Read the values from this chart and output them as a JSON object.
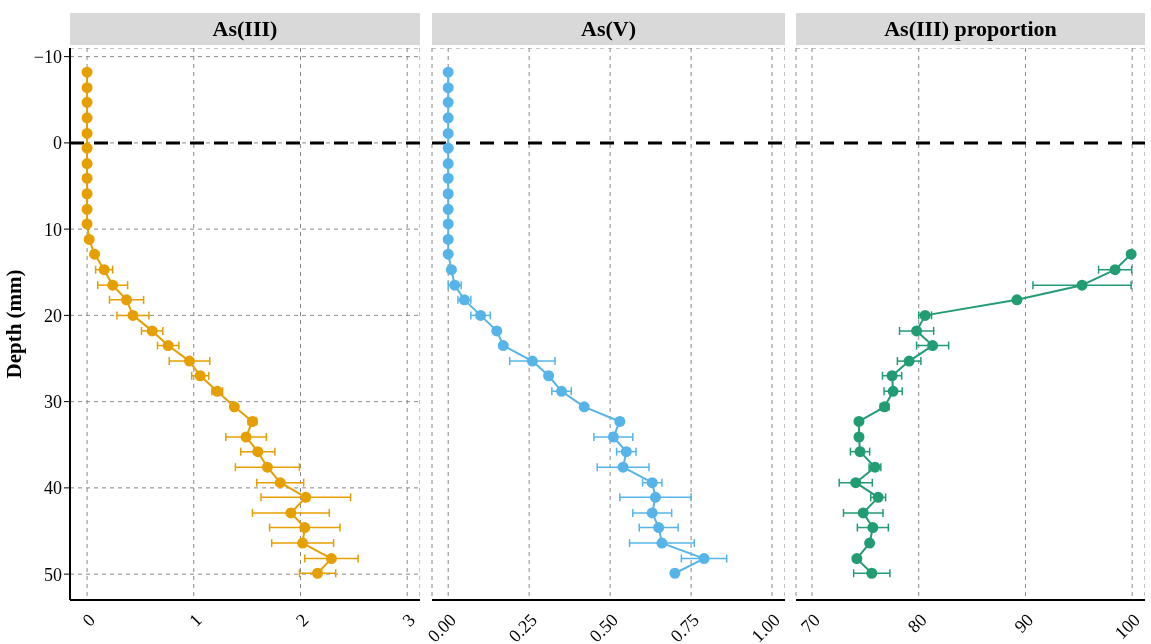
{
  "chart_data": [
    {
      "type": "line",
      "title": "As(III)",
      "ylabel": "Depth (mm)",
      "orientation": "horizontal",
      "color": "#e69f00",
      "marker": "circle",
      "grid": true,
      "x": [
        -8.2,
        -6.4,
        -4.7,
        -2.9,
        -1.1,
        0.6,
        2.4,
        4.1,
        5.9,
        7.7,
        9.4,
        11.2,
        12.9,
        14.7,
        16.5,
        18.2,
        20.0,
        21.8,
        23.5,
        25.3,
        27.0,
        28.8,
        30.6,
        32.3,
        34.1,
        35.8,
        37.6,
        39.4,
        41.1,
        42.9,
        44.6,
        46.4,
        48.2,
        49.9
      ],
      "values": [
        0,
        0,
        0,
        0,
        0,
        0,
        0,
        0,
        0,
        0,
        0,
        0.02,
        0.07,
        0.16,
        0.24,
        0.37,
        0.43,
        0.61,
        0.76,
        0.96,
        1.06,
        1.22,
        1.38,
        1.55,
        1.49,
        1.6,
        1.69,
        1.81,
        2.05,
        1.91,
        2.04,
        2.02,
        2.29,
        2.16
      ],
      "errors": [
        null,
        null,
        null,
        null,
        null,
        null,
        null,
        null,
        null,
        null,
        null,
        null,
        null,
        0.08,
        0.14,
        0.16,
        0.15,
        0.1,
        0.1,
        0.19,
        0.08,
        0.05,
        null,
        0.04,
        0.19,
        0.16,
        0.3,
        0.22,
        0.42,
        0.36,
        0.33,
        0.29,
        0.25,
        0.17
      ],
      "xlim": [
        -0.16,
        3.12
      ],
      "xticks": [
        0,
        1,
        2,
        3
      ],
      "ylim": [
        53,
        -11
      ],
      "yticks": [
        {
          "value": -10,
          "label": "−10"
        },
        0,
        10,
        20,
        30,
        40,
        50
      ],
      "ref_lines": [
        {
          "axis": "y",
          "value": 0,
          "color": "#000000",
          "line_style": "dashed"
        }
      ]
    },
    {
      "type": "line",
      "title": "As(V)",
      "orientation": "horizontal",
      "color": "#56b4e9",
      "marker": "circle",
      "grid": true,
      "tick_labels": "x",
      "x": [
        -8.2,
        -6.4,
        -4.7,
        -2.9,
        -1.1,
        0.6,
        2.4,
        4.1,
        5.9,
        7.7,
        9.4,
        11.2,
        12.9,
        14.7,
        16.5,
        18.2,
        20.0,
        21.8,
        23.5,
        25.3,
        27.0,
        28.8,
        30.6,
        32.3,
        34.1,
        35.8,
        37.6,
        39.4,
        41.1,
        42.9,
        44.6,
        46.4,
        48.2,
        49.9
      ],
      "values": [
        0,
        0,
        0,
        0,
        0,
        0,
        0,
        0,
        0,
        0,
        0,
        0,
        0,
        0.01,
        0.02,
        0.05,
        0.1,
        0.15,
        0.17,
        0.26,
        0.31,
        0.35,
        0.42,
        0.53,
        0.51,
        0.55,
        0.54,
        0.63,
        0.64,
        0.63,
        0.65,
        0.66,
        0.79,
        0.7
      ],
      "errors": [
        null,
        null,
        null,
        null,
        null,
        null,
        null,
        null,
        null,
        null,
        null,
        null,
        null,
        null,
        0.02,
        0.02,
        0.03,
        null,
        null,
        0.07,
        null,
        0.03,
        null,
        0.01,
        0.06,
        0.03,
        0.08,
        0.03,
        0.11,
        0.06,
        0.06,
        0.1,
        0.07,
        null
      ],
      "xlim": [
        -0.05,
        1.04
      ],
      "xticks": [
        {
          "value": 0,
          "label": "0.00"
        },
        {
          "value": 0.25,
          "label": "0.25"
        },
        {
          "value": 0.5,
          "label": "0.50"
        },
        {
          "value": 0.75,
          "label": "0.75"
        },
        {
          "value": 1,
          "label": "1.00"
        }
      ],
      "ylim": [
        53,
        -11
      ],
      "yticks": [
        -10,
        0,
        10,
        20,
        30,
        40,
        50
      ],
      "ref_lines": [
        {
          "axis": "y",
          "value": 0,
          "color": "#000000",
          "line_style": "dashed"
        }
      ]
    },
    {
      "type": "line",
      "title": "As(III) proportion",
      "orientation": "horizontal",
      "color": "#229c72",
      "marker": "circle",
      "grid": true,
      "tick_labels": "x",
      "x": [
        12.9,
        14.7,
        16.5,
        18.2,
        20.0,
        21.8,
        23.5,
        25.3,
        27.0,
        28.8,
        30.6,
        32.3,
        34.1,
        35.8,
        37.6,
        39.4,
        41.1,
        42.9,
        44.6,
        46.4,
        48.2,
        49.9
      ],
      "values": [
        99.9,
        98.4,
        95.3,
        89.2,
        80.6,
        79.8,
        81.3,
        79.1,
        77.5,
        77.6,
        76.8,
        74.4,
        74.4,
        74.5,
        75.9,
        74.1,
        76.2,
        74.8,
        75.7,
        75.4,
        74.2,
        75.6
      ],
      "errors": [
        null,
        1.55,
        4.6,
        null,
        0.6,
        1.6,
        1.5,
        1.1,
        0.9,
        0.85,
        0.4,
        null,
        null,
        0.9,
        0.55,
        1.55,
        0.7,
        1.85,
        1.45,
        null,
        null,
        1.7
      ],
      "xlim": [
        68.5,
        101.2
      ],
      "xticks": [
        70,
        80,
        90,
        100
      ],
      "ylim": [
        53,
        -11
      ],
      "yticks": [
        -10,
        0,
        10,
        20,
        30,
        40,
        50
      ],
      "ref_lines": [
        {
          "axis": "y",
          "value": 0,
          "color": "#000000",
          "line_style": "dashed"
        }
      ]
    }
  ]
}
